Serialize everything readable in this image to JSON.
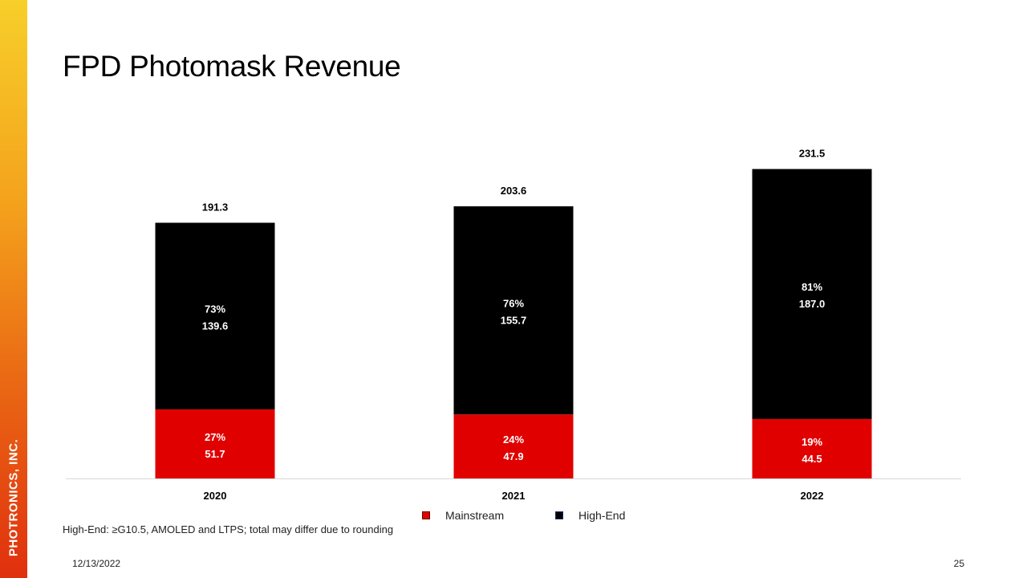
{
  "sidebar": {
    "company": "PHOTRONICS, INC."
  },
  "slide": {
    "title": "FPD Photomask Revenue",
    "footnote": "High-End: ≥G10.5, AMOLED and LTPS; total may differ due to rounding",
    "date": "12/13/2022",
    "page_number": "25"
  },
  "colors": {
    "mainstream": "#e00000",
    "high_end": "#000000",
    "sidebar_top": "#f7cf2a",
    "sidebar_bottom": "#e0300e"
  },
  "chart_data": {
    "type": "bar",
    "stacked": true,
    "title": "FPD Photomask Revenue",
    "categories": [
      "2020",
      "2021",
      "2022"
    ],
    "series": [
      {
        "name": "Mainstream",
        "values": [
          51.7,
          47.9,
          44.5
        ],
        "pct_labels": [
          "27%",
          "24%",
          "19%"
        ],
        "value_labels": [
          "51.7",
          "47.9",
          "44.5"
        ],
        "color": "#e00000"
      },
      {
        "name": "High-End",
        "values": [
          139.6,
          155.7,
          187.0
        ],
        "pct_labels": [
          "73%",
          "76%",
          "81%"
        ],
        "value_labels": [
          "139.6",
          "155.7",
          "187.0"
        ],
        "color": "#000000"
      }
    ],
    "totals": [
      191.3,
      203.6,
      231.5
    ],
    "total_labels": [
      "191.3",
      "203.6",
      "231.5"
    ],
    "xlabel": "",
    "ylabel": "",
    "ylim": [
      0,
      250
    ],
    "grid": false,
    "legend": "bottom-center"
  }
}
